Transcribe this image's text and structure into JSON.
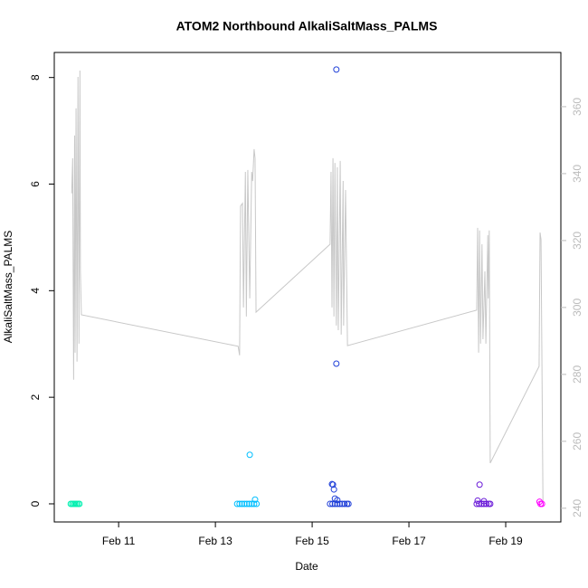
{
  "chart_data": {
    "type": "scatter",
    "title": "ATOM2 Northbound AlkaliSaltMass_PALMS",
    "x_label": "Date",
    "y_label": "AlkaliSaltMass_PALMS",
    "xlim": [
      9.67,
      20.14
    ],
    "xticks": [
      {
        "value": 11,
        "label": "Feb 11"
      },
      {
        "value": 13,
        "label": "Feb 13"
      },
      {
        "value": 15,
        "label": "Feb 15"
      },
      {
        "value": 17,
        "label": "Feb 17"
      },
      {
        "value": 19,
        "label": "Feb 19"
      }
    ],
    "ylim": [
      -0.34,
      8.47
    ],
    "yticks": [
      0,
      2,
      4,
      6,
      8
    ],
    "y2lim": [
      235.9,
      376.2
    ],
    "y2ticks": [
      240,
      260,
      280,
      300,
      320,
      340,
      360
    ],
    "series": [
      {
        "type": "line",
        "axis": "y2",
        "color": "#c8c8c8",
        "x": [
          10.03,
          10.05,
          10.07,
          10.09,
          10.1,
          10.12,
          10.14,
          10.16,
          10.18,
          10.2,
          10.21,
          10.23,
          13.47,
          13.5,
          13.52,
          13.56,
          13.58,
          13.62,
          13.64,
          13.67,
          13.71,
          13.75,
          13.77,
          13.8,
          13.82,
          13.84,
          15.37,
          15.39,
          15.41,
          15.43,
          15.45,
          15.47,
          15.5,
          15.52,
          15.54,
          15.58,
          15.6,
          15.64,
          15.65,
          15.69,
          15.73,
          18.4,
          18.42,
          18.44,
          18.46,
          18.48,
          18.51,
          18.53,
          18.57,
          18.59,
          18.63,
          18.64,
          18.66,
          18.68,
          19.69,
          19.71,
          19.73,
          19.77
        ],
        "values": [
          334.1,
          344.6,
          278.4,
          351.4,
          286.5,
          359.5,
          283.8,
          368.9,
          289.2,
          370.8,
          310.8,
          297.8,
          288.4,
          285.7,
          330.3,
          331.1,
          300,
          340.5,
          297.3,
          341.1,
          302.7,
          340.5,
          337.8,
          347.3,
          344.6,
          298.6,
          318.9,
          340.5,
          300,
          344.6,
          297.3,
          343.2,
          294.6,
          341.9,
          293.2,
          343.8,
          291.9,
          337.8,
          294.6,
          335.1,
          288.6,
          299.2,
          323.8,
          286.5,
          323,
          289.2,
          318.9,
          290.5,
          310.8,
          289.2,
          321.6,
          302.7,
          323,
          253.5,
          282.4,
          322.4,
          320.3,
          241.9
        ]
      },
      {
        "type": "scatter",
        "color": "#00f0b0",
        "x": [
          10.01,
          10.04,
          10.07,
          10.1,
          10.13,
          10.16,
          10.19
        ],
        "values": [
          0,
          0,
          0,
          0,
          0,
          0,
          0
        ]
      },
      {
        "type": "scatter",
        "color": "#00bfff",
        "x": [
          13.45,
          13.5,
          13.55,
          13.6,
          13.65,
          13.7,
          13.75,
          13.8,
          13.85,
          13.71,
          13.82
        ],
        "values": [
          0,
          0,
          0,
          0,
          0,
          0,
          0,
          0,
          0,
          0.92,
          0.08
        ]
      },
      {
        "type": "scatter",
        "color": "#1f3fd8",
        "x": [
          15.37,
          15.42,
          15.47,
          15.52,
          15.57,
          15.62,
          15.67,
          15.72,
          15.75,
          15.5,
          15.5,
          15.41,
          15.43,
          15.45,
          15.47,
          15.52
        ],
        "values": [
          0,
          0,
          0,
          0,
          0,
          0,
          0,
          0,
          0,
          8.15,
          2.63,
          0.37,
          0.36,
          0.27,
          0.1,
          0.07
        ]
      },
      {
        "type": "scatter",
        "color": "#6a1ad8",
        "x": [
          18.4,
          18.45,
          18.5,
          18.55,
          18.6,
          18.65,
          18.68,
          18.46,
          18.42,
          18.55
        ],
        "values": [
          0,
          0,
          0,
          0,
          0,
          0,
          0,
          0.36,
          0.06,
          0.05
        ]
      },
      {
        "type": "scatter",
        "color": "#ff00ff",
        "x": [
          19.7,
          19.72,
          19.75
        ],
        "values": [
          0.04,
          0,
          0
        ]
      }
    ]
  }
}
